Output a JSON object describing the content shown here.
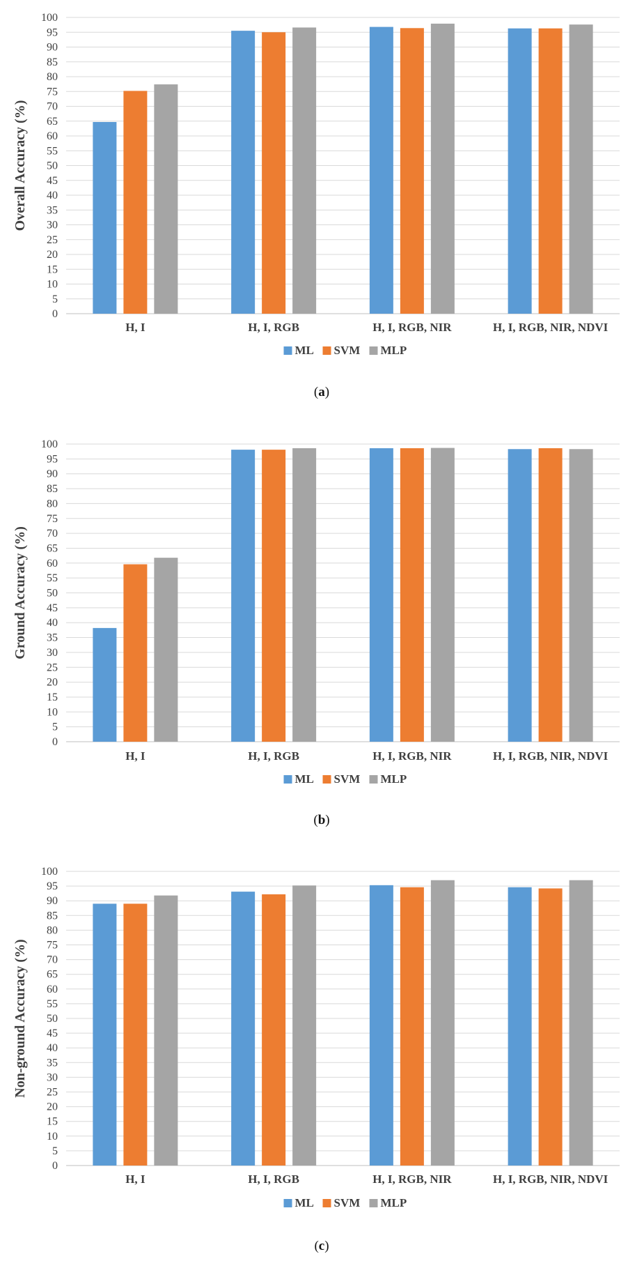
{
  "figure": {
    "panels": [
      {
        "caption_letter": "a"
      },
      {
        "caption_letter": "b"
      },
      {
        "caption_letter": "c"
      }
    ]
  },
  "series_colors": {
    "ML": "#5b9bd5",
    "SVM": "#ed7d31",
    "MLP": "#a5a5a5"
  },
  "chart_data": [
    {
      "type": "bar",
      "title": "",
      "xlabel": "",
      "ylabel": "Overall Accuracy (%)",
      "ylim": [
        0,
        100
      ],
      "ytick_step": 5,
      "grid": true,
      "legend": "bottom-center",
      "categories": [
        "H, I",
        "H, I, RGB",
        "H, I, RGB, NIR",
        "H, I, RGB, NIR, NDVI"
      ],
      "series": [
        {
          "name": "ML",
          "values": [
            64.7,
            95.5,
            96.8,
            96.3
          ]
        },
        {
          "name": "SVM",
          "values": [
            75.2,
            95.0,
            96.4,
            96.3
          ]
        },
        {
          "name": "MLP",
          "values": [
            77.4,
            96.6,
            97.9,
            97.6
          ]
        }
      ]
    },
    {
      "type": "bar",
      "title": "",
      "xlabel": "",
      "ylabel": "Ground Accuracy (%)",
      "ylim": [
        0,
        100
      ],
      "ytick_step": 5,
      "grid": true,
      "legend": "bottom-center",
      "categories": [
        "H, I",
        "H, I, RGB",
        "H, I, RGB, NIR",
        "H, I, RGB, NIR, NDVI"
      ],
      "series": [
        {
          "name": "ML",
          "values": [
            38.2,
            98.1,
            98.6,
            98.3
          ]
        },
        {
          "name": "SVM",
          "values": [
            59.6,
            98.1,
            98.6,
            98.6
          ]
        },
        {
          "name": "MLP",
          "values": [
            61.8,
            98.6,
            98.7,
            98.3
          ]
        }
      ]
    },
    {
      "type": "bar",
      "title": "",
      "xlabel": "",
      "ylabel": "Non-ground Accuracy (%)",
      "ylim": [
        0,
        100
      ],
      "ytick_step": 5,
      "grid": true,
      "legend": "bottom-center",
      "categories": [
        "H, I",
        "H, I, RGB",
        "H, I, RGB, NIR",
        "H, I, RGB, NIR, NDVI"
      ],
      "series": [
        {
          "name": "ML",
          "values": [
            89.0,
            93.1,
            95.3,
            94.6
          ]
        },
        {
          "name": "SVM",
          "values": [
            89.0,
            92.2,
            94.6,
            94.2
          ]
        },
        {
          "name": "MLP",
          "values": [
            91.8,
            95.2,
            97.0,
            97.0
          ]
        }
      ]
    }
  ]
}
